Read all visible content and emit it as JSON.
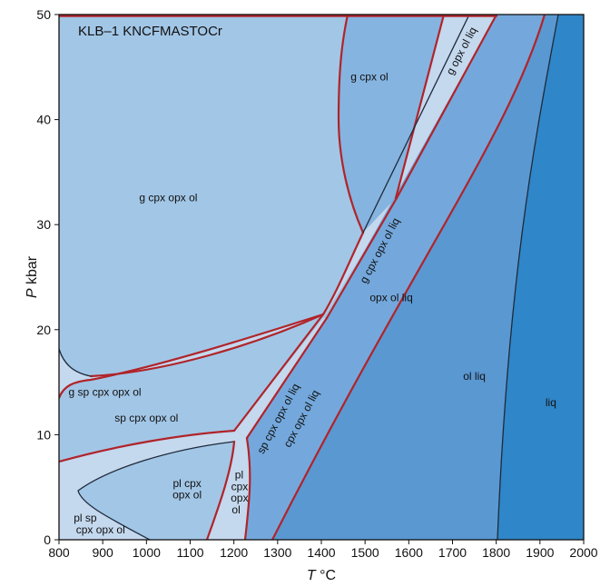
{
  "chart_data": {
    "type": "area",
    "title": "KLB–1 KNCFMASTOCr",
    "xlabel_italic": "T",
    "xlabel_unit": " °C",
    "ylabel_italic": "P",
    "ylabel_unit": " kbar",
    "xlim": [
      800,
      2000
    ],
    "ylim": [
      0,
      50
    ],
    "xticks": [
      800,
      900,
      1000,
      1100,
      1200,
      1300,
      1400,
      1500,
      1600,
      1700,
      1800,
      1900,
      2000
    ],
    "yticks": [
      0,
      10,
      20,
      30,
      40,
      50
    ],
    "colors": {
      "subsolidus": "#a2c6e6",
      "thin_field": "#c4d8ee",
      "partial_upper": "#86b4e0",
      "opx_ol_liq": "#74a8dc",
      "ol_liq": "#5a98d2",
      "liq": "#2f86c8",
      "boundary_red": "#b0242a",
      "boundary_dark": "#1f2a3a"
    },
    "fields": [
      {
        "name": "g cpx opx ol",
        "x": 1050,
        "y": 32.5,
        "rotate": 0
      },
      {
        "name": "g cpx ol",
        "x": 1510,
        "y": 44,
        "rotate": 0
      },
      {
        "name": "g opx ol liq",
        "x": 1722,
        "y": 46.5,
        "rotate": -62
      },
      {
        "name": "g cpx opx ol liq",
        "x": 1535,
        "y": 27.5,
        "rotate": -62
      },
      {
        "name": "opx ol liq",
        "x": 1560,
        "y": 23,
        "rotate": 0
      },
      {
        "name": "ol liq",
        "x": 1750,
        "y": 15.5,
        "rotate": 0
      },
      {
        "name": "liq",
        "x": 1925,
        "y": 13,
        "rotate": 0
      },
      {
        "name": "g sp cpx opx ol",
        "x": 905,
        "y": 14,
        "rotate": 0
      },
      {
        "name": "sp cpx opx ol",
        "x": 1000,
        "y": 11.5,
        "rotate": 0
      },
      {
        "name": "sp cpx opx ol liq",
        "x": 1303,
        "y": 11.5,
        "rotate": -62
      },
      {
        "name": "cpx opx ol liq",
        "x": 1356,
        "y": 11.5,
        "rotate": -62
      },
      {
        "name": "pl cpx",
        "x": 1093,
        "y": 5.3,
        "rotate": 0
      },
      {
        "name": "opx ol",
        "x": 1093,
        "y": 4.2,
        "rotate": 0
      },
      {
        "name": "pl",
        "x": 1212,
        "y": 6.1,
        "rotate": 0
      },
      {
        "name": "cpx",
        "x": 1213,
        "y": 5.0,
        "rotate": 0
      },
      {
        "name": "opx",
        "x": 1213,
        "y": 3.9,
        "rotate": 0
      },
      {
        "name": "ol",
        "x": 1205,
        "y": 2.8,
        "rotate": 0
      },
      {
        "name": "pl sp",
        "x": 860,
        "y": 2.0,
        "rotate": 0
      },
      {
        "name": "cpx opx ol",
        "x": 895,
        "y": 0.9,
        "rotate": 0
      }
    ]
  }
}
